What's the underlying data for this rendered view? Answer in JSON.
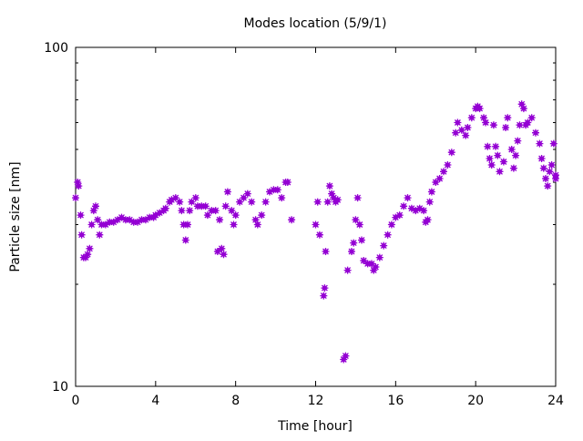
{
  "chart_data": {
    "type": "scatter",
    "title": "Modes location (5/9/1)",
    "xlabel": "Time [hour]",
    "ylabel": "Particle size [nm]",
    "xlim": [
      0,
      24
    ],
    "ylim": [
      10,
      100
    ],
    "yscale": "log",
    "xticks": [
      "0",
      "4",
      "8",
      "12",
      "16",
      "20",
      "24"
    ],
    "yticks": [
      "10",
      "100"
    ],
    "grid": false,
    "marker_color": "#9400d3",
    "x": [
      0.0,
      0.1,
      0.15,
      0.25,
      0.3,
      0.4,
      0.5,
      0.6,
      0.7,
      0.8,
      0.9,
      1.0,
      1.1,
      1.2,
      1.3,
      1.5,
      1.7,
      1.9,
      2.1,
      2.3,
      2.5,
      2.7,
      2.9,
      3.1,
      3.3,
      3.5,
      3.7,
      3.9,
      4.0,
      4.2,
      4.4,
      4.5,
      4.7,
      4.8,
      5.0,
      5.2,
      5.3,
      5.4,
      5.5,
      5.6,
      5.7,
      5.8,
      6.0,
      6.1,
      6.3,
      6.5,
      6.6,
      6.8,
      7.0,
      7.1,
      7.2,
      7.3,
      7.4,
      7.5,
      7.6,
      7.8,
      7.9,
      8.0,
      8.2,
      8.4,
      8.6,
      8.8,
      9.0,
      9.1,
      9.3,
      9.5,
      9.7,
      9.9,
      10.1,
      10.3,
      10.5,
      10.6,
      10.8,
      12.0,
      12.1,
      12.2,
      12.4,
      12.45,
      12.5,
      12.6,
      12.7,
      12.8,
      12.9,
      13.0,
      13.1,
      13.4,
      13.5,
      13.6,
      13.8,
      13.9,
      14.0,
      14.1,
      14.2,
      14.3,
      14.4,
      14.6,
      14.8,
      14.9,
      15.0,
      15.2,
      15.4,
      15.6,
      15.8,
      16.0,
      16.2,
      16.4,
      16.6,
      16.8,
      17.0,
      17.2,
      17.4,
      17.5,
      17.6,
      17.7,
      17.8,
      18.0,
      18.2,
      18.4,
      18.6,
      18.8,
      19.0,
      19.1,
      19.3,
      19.5,
      19.6,
      19.8,
      20.0,
      20.1,
      20.2,
      20.4,
      20.5,
      20.6,
      20.7,
      20.8,
      20.9,
      21.0,
      21.1,
      21.2,
      21.4,
      21.5,
      21.6,
      21.8,
      21.9,
      22.0,
      22.1,
      22.2,
      22.3,
      22.4,
      22.5,
      22.6,
      22.8,
      23.0,
      23.2,
      23.3,
      23.4,
      23.5,
      23.6,
      23.7,
      23.8,
      23.9,
      24.0,
      24.0
    ],
    "y": [
      36,
      40,
      39,
      32,
      28,
      24,
      24,
      24.5,
      25.5,
      30,
      33,
      34,
      31,
      28,
      30,
      30,
      30.5,
      30.5,
      31,
      31.5,
      31,
      31,
      30.5,
      30.5,
      31,
      31,
      31.5,
      31.5,
      32,
      32.5,
      33,
      33.5,
      35,
      35.5,
      36,
      35,
      33,
      30,
      27,
      30,
      33,
      35,
      36,
      34,
      34,
      34,
      32,
      33,
      33,
      25,
      31,
      25.5,
      24.5,
      34,
      37.5,
      33,
      30,
      32,
      35,
      36,
      37,
      35,
      31,
      30,
      32,
      35,
      37.5,
      38,
      38,
      36,
      40,
      40,
      31,
      30,
      35,
      28,
      18.5,
      19.5,
      25,
      35,
      39,
      37,
      36,
      35,
      35.5,
      12,
      12.3,
      22,
      25,
      26.5,
      31,
      36,
      30,
      27,
      23.5,
      23,
      23,
      22,
      22.5,
      24,
      26,
      28,
      30,
      31.5,
      32,
      34,
      36,
      33.5,
      33,
      33.5,
      33,
      30.5,
      31,
      35,
      37.5,
      40,
      41,
      43,
      45,
      49,
      56,
      60,
      57,
      55,
      58,
      62,
      66,
      67,
      66,
      62,
      60,
      51,
      47,
      45,
      59,
      51,
      48,
      43,
      46,
      58,
      62,
      50,
      44,
      48,
      53,
      59,
      68,
      66,
      59,
      60,
      62,
      56,
      52,
      47,
      44,
      41,
      39,
      43,
      45,
      52,
      41,
      42
    ]
  }
}
